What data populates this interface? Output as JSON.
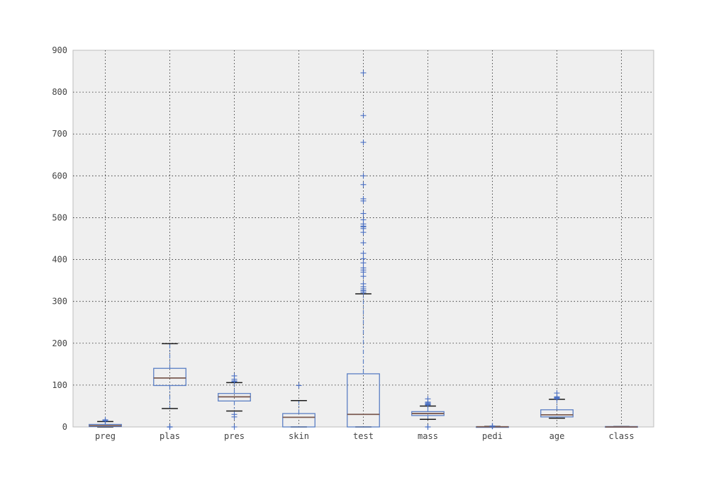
{
  "chart_data": {
    "type": "box",
    "title": "",
    "xlabel": "",
    "ylabel": "",
    "ylim": [
      0,
      900
    ],
    "yticks": [
      0,
      100,
      200,
      300,
      400,
      500,
      600,
      700,
      800,
      900
    ],
    "grid": true,
    "colors": {
      "background": "#efefef",
      "box": "#5b7fc4",
      "median": "#7a5a50",
      "cap": "#1a1a1a",
      "flier": "#4a6fc2"
    },
    "series": [
      {
        "label": "preg",
        "q1": 1,
        "median": 3,
        "q3": 6,
        "whisker_low": 0,
        "whisker_high": 13,
        "fliers": [
          14,
          15,
          17
        ]
      },
      {
        "label": "plas",
        "q1": 99,
        "median": 117,
        "q3": 140,
        "whisker_low": 44,
        "whisker_high": 199,
        "fliers": [
          0,
          0,
          0,
          0,
          0
        ]
      },
      {
        "label": "pres",
        "q1": 62,
        "median": 72,
        "q3": 80,
        "whisker_low": 38,
        "whisker_high": 106,
        "fliers": [
          0,
          24,
          30,
          108,
          110,
          114,
          122
        ]
      },
      {
        "label": "skin",
        "q1": 0,
        "median": 23,
        "q3": 32,
        "whisker_low": 0,
        "whisker_high": 63,
        "fliers": [
          99
        ]
      },
      {
        "label": "test",
        "q1": 0,
        "median": 30,
        "q3": 127,
        "whisker_low": 0,
        "whisker_high": 318,
        "fliers": [
          321,
          325,
          326,
          330,
          335,
          342,
          360,
          370,
          375,
          380,
          392,
          402,
          415,
          440,
          465,
          474,
          478,
          480,
          485,
          495,
          510,
          540,
          545,
          579,
          600,
          680,
          744,
          846
        ]
      },
      {
        "label": "mass",
        "q1": 27.3,
        "median": 32,
        "q3": 36.6,
        "whisker_low": 18.2,
        "whisker_high": 50,
        "fliers": [
          0,
          0,
          0,
          52.3,
          53.2,
          55,
          57.3,
          59.4,
          67.1
        ]
      },
      {
        "label": "pedi",
        "q1": 0.24,
        "median": 0.37,
        "q3": 0.63,
        "whisker_low": 0.08,
        "whisker_high": 1.19,
        "fliers": [
          1.4,
          1.6,
          1.8,
          2.1,
          2.42
        ]
      },
      {
        "label": "age",
        "q1": 24,
        "median": 29,
        "q3": 41,
        "whisker_low": 21,
        "whisker_high": 66,
        "fliers": [
          67,
          68,
          69,
          70,
          72,
          81
        ]
      },
      {
        "label": "class",
        "q1": 0,
        "median": 0,
        "q3": 1,
        "whisker_low": 0,
        "whisker_high": 1,
        "fliers": []
      }
    ]
  }
}
